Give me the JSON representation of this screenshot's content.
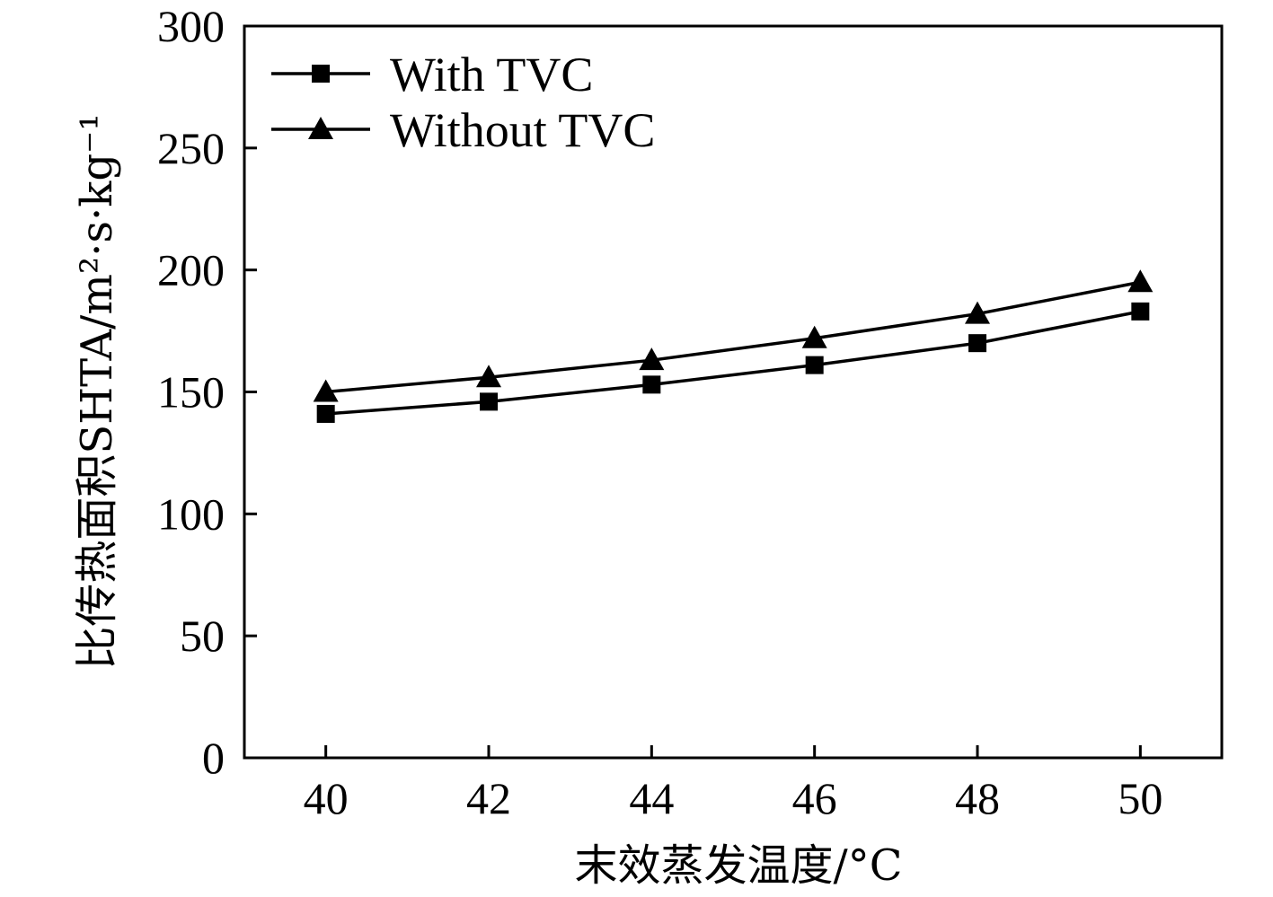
{
  "chart_data": {
    "type": "line",
    "title": "",
    "xlabel": "末效蒸发温度/°C",
    "ylabel": "比传热面积SHTA/m²·s·kg⁻¹",
    "x": [
      40,
      42,
      44,
      46,
      48,
      50
    ],
    "xlim": [
      39,
      51
    ],
    "ylim": [
      0,
      300
    ],
    "xticks": [
      "40",
      "42",
      "44",
      "46",
      "48",
      "50"
    ],
    "yticks": [
      "0",
      "50",
      "100",
      "150",
      "200",
      "250",
      "300"
    ],
    "grid": false,
    "legend_position": "top-left",
    "series": [
      {
        "name": "With TVC",
        "marker": "square",
        "values": [
          141,
          146,
          153,
          161,
          170,
          183
        ]
      },
      {
        "name": "Without TVC",
        "marker": "triangle",
        "values": [
          150,
          156,
          163,
          172,
          182,
          195
        ]
      }
    ]
  }
}
